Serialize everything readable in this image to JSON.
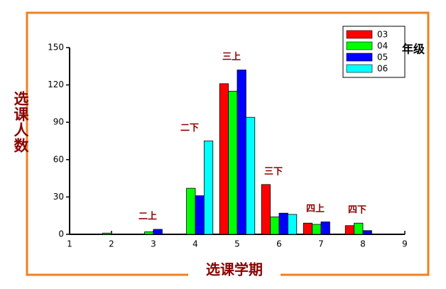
{
  "chart_data": {
    "type": "bar",
    "x_label": "选课学期",
    "y_label": "选课人数",
    "legend_title": "年级",
    "x": [
      2,
      3,
      4,
      5,
      6,
      7,
      8
    ],
    "annotations": [
      null,
      "二上",
      "二下",
      "三上",
      "三下",
      "四上",
      "四下"
    ],
    "series": [
      {
        "name": "03",
        "color": "#ff0000",
        "values": [
          0,
          0,
          0,
          121,
          40,
          9,
          7
        ]
      },
      {
        "name": "04",
        "color": "#00ff00",
        "values": [
          1,
          2,
          37,
          115,
          14,
          8,
          9
        ]
      },
      {
        "name": "05",
        "color": "#0000ff",
        "values": [
          0,
          4,
          31,
          132,
          17,
          10,
          3
        ]
      },
      {
        "name": "06",
        "color": "#00ffff",
        "values": [
          0,
          0,
          75,
          94,
          16,
          0,
          0
        ]
      }
    ],
    "xlim": [
      1,
      9
    ],
    "xticks": [
      1,
      2,
      3,
      4,
      5,
      6,
      7,
      8,
      9
    ],
    "ylim": [
      0,
      150
    ],
    "yticks": [
      0,
      30,
      60,
      90,
      120,
      150
    ],
    "legend": "top-right"
  }
}
